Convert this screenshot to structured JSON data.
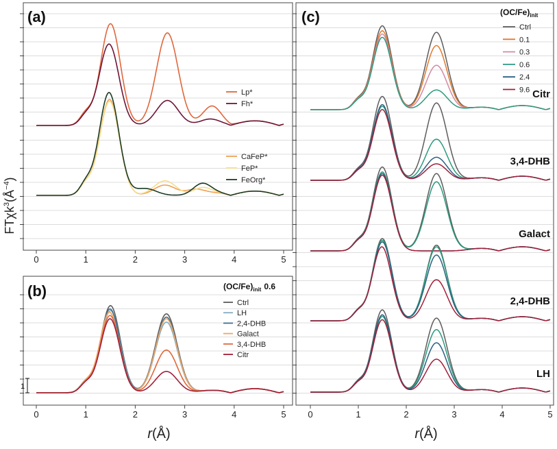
{
  "figure": {
    "ylabel_main": "FTχk",
    "ylabel_sup": "3",
    "ylabel_unit_open": "(Å",
    "ylabel_unit_sup": "−4",
    "ylabel_unit_close": ")",
    "xlabel_italic": "r",
    "xlabel_unit": "(Å)",
    "scalebar_label": "1"
  },
  "colors": {
    "Lp": "#e0663a",
    "Fh": "#6e1435",
    "CaFeP": "#f0a050",
    "FeP": "#f6dc8e",
    "FeOrg": "#1b3a22",
    "Ctrl": "#5c5c5c",
    "LH": "#86acbe",
    "DHB24": "#3f6f8c",
    "Galact": "#f1a561",
    "DHB34": "#e0663a",
    "Citr": "#a11e38",
    "r01": "#e07a2c",
    "r03": "#d08aa0",
    "r06": "#2a9a7e",
    "r24": "#2c5f80",
    "r96": "#a11e38"
  },
  "chart_data": [
    {
      "type": "line",
      "panel_label": "(a)",
      "xlabel": "r (Å)",
      "ylabel": "FTχk3 (Å−4)",
      "xlim": [
        0,
        5
      ],
      "xticks": [
        "0",
        "1",
        "2",
        "3",
        "4",
        "5"
      ],
      "legend_groups": [
        {
          "position": "right-middle",
          "entries": [
            "Lp*",
            "Fh*"
          ]
        },
        {
          "position": "right-lower",
          "entries": [
            "CaFeP*",
            "FeP*",
            "FeOrg*"
          ]
        }
      ],
      "series": [
        {
          "name": "Lp*",
          "color": "#e0663a",
          "peaks": [
            1.5,
            5.5,
            2.65,
            5.0,
            3.55,
            0.9
          ]
        },
        {
          "name": "Fh*",
          "color": "#6e1435",
          "peaks": [
            1.47,
            4.4,
            2.65,
            1.35,
            3.5,
            0.2
          ]
        },
        {
          "name": "CaFeP*",
          "color": "#f0a050",
          "peaks": [
            1.48,
            5.6,
            2.6,
            0.6,
            3.2,
            0.3
          ]
        },
        {
          "name": "FeP*",
          "color": "#f6dc8e",
          "peaks": [
            1.48,
            5.5,
            2.6,
            0.85,
            3.35,
            0.35
          ]
        },
        {
          "name": "FeOrg*",
          "color": "#1b3a22",
          "peaks": [
            1.47,
            6.0,
            2.2,
            0.4,
            3.35,
            0.6
          ]
        }
      ]
    },
    {
      "type": "line",
      "panel_label": "(b)",
      "xlabel": "r (Å)",
      "ylabel": "FTχk3 (Å−4)",
      "xlim": [
        0,
        5
      ],
      "xticks": [
        "0",
        "1",
        "2",
        "3",
        "4",
        "5"
      ],
      "legend_title_main": "(OC/Fe)",
      "legend_title_sub": "init",
      "legend_title_value": "0.6",
      "series": [
        {
          "name": "Ctrl",
          "color": "#5c5c5c",
          "peaks": [
            1.5,
            5.3,
            2.63,
            4.8
          ]
        },
        {
          "name": "LH",
          "color": "#86acbe",
          "peaks": [
            1.5,
            5.0,
            2.63,
            4.3
          ]
        },
        {
          "name": "2,4-DHB",
          "color": "#3f6f8c",
          "peaks": [
            1.49,
            5.1,
            2.63,
            4.6
          ]
        },
        {
          "name": "Galact",
          "color": "#f1a561",
          "peaks": [
            1.48,
            4.9,
            2.63,
            4.5
          ]
        },
        {
          "name": "3,4-DHB",
          "color": "#e0663a",
          "peaks": [
            1.49,
            4.7,
            2.63,
            2.6
          ]
        },
        {
          "name": "Citr",
          "color": "#a11e38",
          "peaks": [
            1.49,
            4.5,
            2.63,
            1.3
          ]
        }
      ]
    },
    {
      "type": "line",
      "panel_label": "(c)",
      "xlabel": "r (Å)",
      "ylabel": "FTχk3 (Å−4)",
      "xlim": [
        0,
        5
      ],
      "xticks": [
        "0",
        "1",
        "2",
        "3",
        "4",
        "5"
      ],
      "legend_title_main": "(OC/Fe)",
      "legend_title_sub": "init",
      "legend_entries": [
        {
          "name": "Ctrl",
          "color": "#5c5c5c"
        },
        {
          "name": "0.1",
          "color": "#e07a2c"
        },
        {
          "name": "0.3",
          "color": "#d08aa0"
        },
        {
          "name": "0.6",
          "color": "#2a9a7e"
        },
        {
          "name": "2.4",
          "color": "#2c5f80"
        },
        {
          "name": "9.6",
          "color": "#a11e38"
        }
      ],
      "groups": [
        {
          "label": "Citr",
          "series": [
            {
              "name": "Ctrl",
              "color": "#5c5c5c",
              "peaks": [
                1.5,
                5.1,
                2.63,
                4.7
              ]
            },
            {
              "name": "0.1",
              "color": "#e07a2c",
              "peaks": [
                1.5,
                4.8,
                2.63,
                3.9
              ]
            },
            {
              "name": "0.3",
              "color": "#d08aa0",
              "peaks": [
                1.5,
                4.6,
                2.63,
                2.7
              ]
            },
            {
              "name": "0.6",
              "color": "#2a9a7e",
              "peaks": [
                1.5,
                4.4,
                2.63,
                1.2
              ]
            }
          ]
        },
        {
          "label": "3,4-DHB",
          "series": [
            {
              "name": "Ctrl",
              "color": "#5c5c5c",
              "peaks": [
                1.5,
                5.1,
                2.63,
                4.7
              ]
            },
            {
              "name": "0.6",
              "color": "#2a9a7e",
              "peaks": [
                1.5,
                4.5,
                2.63,
                2.5
              ]
            },
            {
              "name": "2.4",
              "color": "#2c5f80",
              "peaks": [
                1.5,
                4.6,
                2.63,
                1.4
              ]
            },
            {
              "name": "9.6",
              "color": "#a11e38",
              "peaks": [
                1.5,
                4.3,
                2.63,
                1.0
              ]
            }
          ]
        },
        {
          "label": "Galact",
          "series": [
            {
              "name": "Ctrl",
              "color": "#5c5c5c",
              "peaks": [
                1.5,
                5.1,
                2.63,
                4.7
              ]
            },
            {
              "name": "0.6",
              "color": "#2a9a7e",
              "peaks": [
                1.5,
                4.8,
                2.63,
                4.2
              ]
            },
            {
              "name": "2.4",
              "color": "#2c5f80",
              "peaks": [
                1.5,
                4.7,
                2.63,
                0.0
              ]
            },
            {
              "name": "9.6",
              "color": "#a11e38",
              "peaks": [
                1.5,
                4.6,
                2.63,
                0.0
              ]
            }
          ]
        },
        {
          "label": "2,4-DHB",
          "series": [
            {
              "name": "Ctrl",
              "color": "#5c5c5c",
              "peaks": [
                1.5,
                5.0,
                2.63,
                4.6
              ]
            },
            {
              "name": "0.6",
              "color": "#2a9a7e",
              "peaks": [
                1.5,
                4.9,
                2.63,
                4.5
              ]
            },
            {
              "name": "2.4",
              "color": "#2c5f80",
              "peaks": [
                1.5,
                4.8,
                2.63,
                4.0
              ]
            },
            {
              "name": "9.6",
              "color": "#a11e38",
              "peaks": [
                1.49,
                4.5,
                2.63,
                2.5
              ]
            }
          ]
        },
        {
          "label": "LH",
          "series": [
            {
              "name": "Ctrl",
              "color": "#5c5c5c",
              "peaks": [
                1.5,
                5.0,
                2.63,
                4.5
              ]
            },
            {
              "name": "0.6",
              "color": "#2a9a7e",
              "peaks": [
                1.5,
                4.6,
                2.63,
                3.8
              ]
            },
            {
              "name": "2.4",
              "color": "#2c5f80",
              "peaks": [
                1.5,
                4.7,
                2.63,
                3.0
              ]
            },
            {
              "name": "9.6",
              "color": "#a11e38",
              "peaks": [
                1.5,
                4.4,
                2.63,
                2.0
              ]
            }
          ]
        }
      ]
    }
  ]
}
